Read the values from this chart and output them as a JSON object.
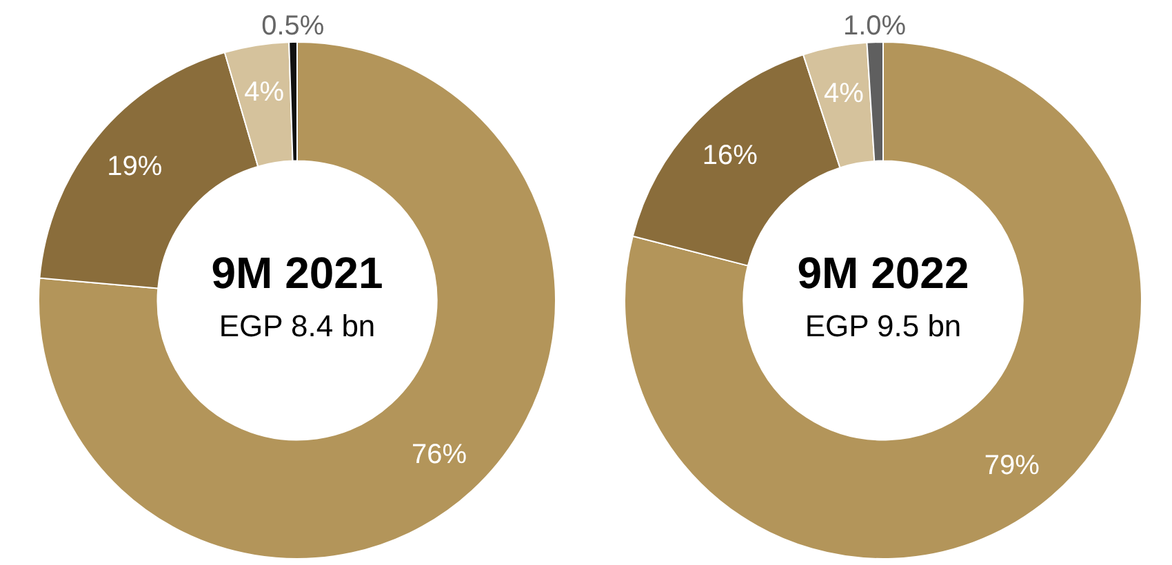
{
  "chart_data": [
    {
      "type": "donut",
      "title": "9M 2021",
      "subtitle": "EGP 8.4 bn",
      "categories": [
        null,
        null,
        null,
        null
      ],
      "values": [
        76,
        19,
        4,
        0.5
      ],
      "colors": [
        "#b3955a",
        "#8a6d3b",
        "#d5c29c",
        "#111111"
      ],
      "value_labels": [
        "76%",
        "19%",
        "4%",
        "0.5%"
      ]
    },
    {
      "type": "donut",
      "title": "9M 2022",
      "subtitle": "EGP 9.5 bn",
      "categories": [
        null,
        null,
        null,
        null
      ],
      "values": [
        79,
        16,
        4,
        1.0
      ],
      "colors": [
        "#b3955a",
        "#8a6d3b",
        "#d5c29c",
        "#5f5f5f"
      ],
      "value_labels": [
        "79%",
        "16%",
        "4%",
        "1.0%"
      ]
    }
  ]
}
